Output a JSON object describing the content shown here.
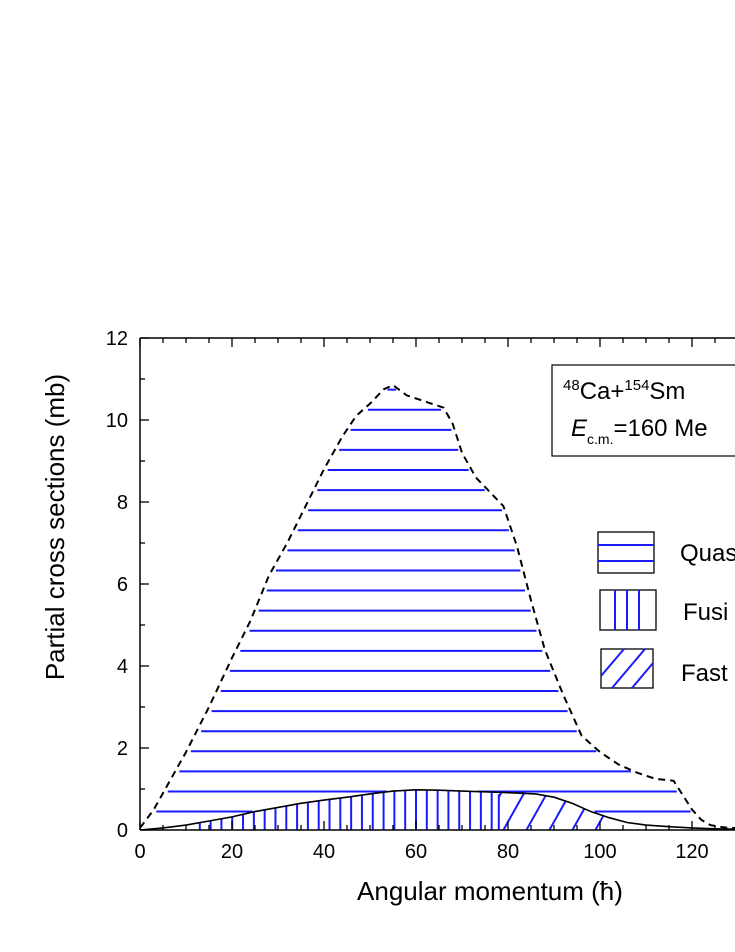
{
  "chart_data": {
    "type": "area",
    "xlabel": "Angular momentum (ħ)",
    "ylabel": "Partial cross sections (mb)",
    "xlim": [
      0,
      130
    ],
    "ylim": [
      0,
      12
    ],
    "x_ticks": [
      0,
      20,
      40,
      60,
      80,
      100,
      120
    ],
    "y_ticks": [
      0,
      2,
      4,
      6,
      8,
      10,
      12
    ],
    "annotation": {
      "reaction_a": "48",
      "reaction_b": "Ca+",
      "reaction_c": "154",
      "reaction_d": "Sm",
      "energy_symbol": "E",
      "energy_sub": "c.m.",
      "energy_value": "=160 Me"
    },
    "legend": [
      {
        "label": "Quas",
        "pattern": "horizontal"
      },
      {
        "label": "Fusi",
        "pattern": "vertical"
      },
      {
        "label": "Fast",
        "pattern": "diagonal"
      }
    ],
    "colors": {
      "fill": "#1a1aff",
      "line": "#000000"
    },
    "series": [
      {
        "name": "Quas",
        "style": "dashed",
        "x": [
          0,
          3,
          6,
          10,
          15,
          20,
          24,
          28,
          32,
          36,
          40,
          44,
          47,
          50,
          53,
          55,
          58,
          62,
          66,
          68,
          70,
          73,
          76,
          79,
          82,
          85,
          88,
          92,
          96,
          100,
          104,
          108,
          112,
          116,
          118,
          120,
          122,
          124,
          126,
          128,
          130
        ],
        "y": [
          0.05,
          0.5,
          1.1,
          1.9,
          3.0,
          4.2,
          5.1,
          6.2,
          7.0,
          7.9,
          8.8,
          9.6,
          10.1,
          10.4,
          10.75,
          10.85,
          10.6,
          10.45,
          10.3,
          9.9,
          9.2,
          8.6,
          8.25,
          7.9,
          6.9,
          5.6,
          4.4,
          3.3,
          2.3,
          1.9,
          1.6,
          1.4,
          1.25,
          1.2,
          0.85,
          0.5,
          0.25,
          0.12,
          0.08,
          0.05,
          0.05
        ]
      },
      {
        "name": "Fusi",
        "style": "solid",
        "x": [
          0,
          5,
          10,
          15,
          20,
          25,
          30,
          35,
          40,
          45,
          50,
          55,
          60,
          65,
          70,
          75,
          78
        ],
        "y": [
          0.0,
          0.05,
          0.12,
          0.22,
          0.32,
          0.45,
          0.55,
          0.65,
          0.73,
          0.8,
          0.88,
          0.95,
          0.98,
          0.97,
          0.95,
          0.93,
          0.92
        ]
      },
      {
        "name": "Fast",
        "style": "solid",
        "x": [
          78,
          82,
          86,
          90,
          94,
          98,
          102,
          106,
          110,
          115,
          120,
          125,
          130
        ],
        "y": [
          0.92,
          0.9,
          0.88,
          0.8,
          0.65,
          0.45,
          0.3,
          0.18,
          0.12,
          0.08,
          0.05,
          0.03,
          0.02
        ]
      }
    ]
  }
}
